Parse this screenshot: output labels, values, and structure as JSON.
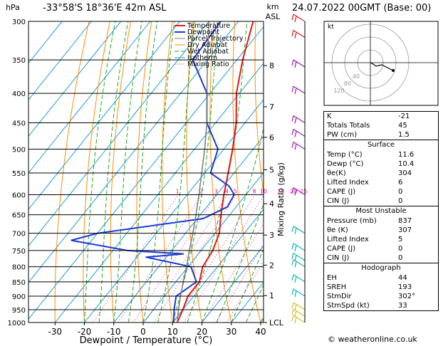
{
  "header": {
    "location": "-33°58'S  18°36'E  42m  ASL",
    "datetime": "24.07.2022  00GMT  (Base: 00)",
    "hpa_label": "hPa",
    "km_label": "km",
    "asl_label": "ASL"
  },
  "chart_data": {
    "type": "line",
    "xlabel": "Dewpoint / Temperature (°C)",
    "ylabel": "hPa",
    "right_axis_label": "Mixing Ratio (g/kg)",
    "xlim": [
      -40,
      40
    ],
    "ylim": [
      1000,
      300
    ],
    "x_ticks": [
      "-30",
      "-20",
      "-10",
      "0",
      "10",
      "20",
      "30",
      "40"
    ],
    "pressure_levels": [
      "300",
      "350",
      "400",
      "450",
      "500",
      "550",
      "600",
      "650",
      "700",
      "750",
      "800",
      "850",
      "900",
      "950",
      "1000"
    ],
    "km_ticks": [
      {
        "label": "8",
        "p": 358
      },
      {
        "label": "7",
        "p": 422
      },
      {
        "label": "6",
        "p": 477
      },
      {
        "label": "5",
        "p": 543
      },
      {
        "label": "4",
        "p": 622
      },
      {
        "label": "3",
        "p": 705
      },
      {
        "label": "2",
        "p": 795
      },
      {
        "label": "1",
        "p": 898
      },
      {
        "label": "LCL",
        "p": 1000
      }
    ],
    "mixing_ratio_labels": [
      "1",
      "2",
      "3",
      "4",
      "5",
      "8",
      "10",
      "15",
      "20",
      "25"
    ],
    "legend": [
      "Temperature",
      "Dewpoint",
      "Parcel Trajectory",
      "Dry Adiabat",
      "Wet Adiabat",
      "Isotherm",
      "Mixing Ratio"
    ],
    "colors": {
      "temperature": "#e11919",
      "dewpoint": "#1a3ad6",
      "parcel": "#808080",
      "dry_adiabat": "#ff8c00",
      "wet_adiabat": "#22aa22",
      "isotherm": "#1e9bd7",
      "mixing_ratio": "#e0109a"
    },
    "series": [
      {
        "name": "Temperature",
        "p": [
          1000,
          950,
          900,
          850,
          800,
          750,
          700,
          650,
          600,
          550,
          500,
          450,
          400,
          350,
          300
        ],
        "t": [
          11.6,
          10.0,
          8.0,
          8.0,
          5.0,
          4.0,
          1.5,
          -3.0,
          -7.5,
          -12.0,
          -17.0,
          -23.0,
          -31.0,
          -38.0,
          -45.0
        ]
      },
      {
        "name": "Dewpoint",
        "p": [
          1000,
          950,
          900,
          850,
          800,
          770,
          760,
          750,
          720,
          700,
          660,
          630,
          600,
          580,
          550,
          500,
          450,
          400,
          350,
          300
        ],
        "t": [
          10.4,
          7.0,
          4.0,
          7.0,
          1.0,
          -17.0,
          -5.0,
          -25.0,
          -47.0,
          -40.0,
          -8.0,
          -3.0,
          -4.0,
          -8.0,
          -18.0,
          -22.0,
          -33.0,
          -41.0,
          -55.0,
          -56.0
        ]
      },
      {
        "name": "Parcel Trajectory",
        "p": [
          1000,
          950,
          900,
          850,
          800,
          750,
          700,
          650,
          600,
          550,
          500,
          450,
          400,
          350,
          300
        ],
        "t": [
          11.6,
          8.5,
          5.5,
          2.5,
          -0.5,
          -4.0,
          -7.5,
          -11.5,
          -16.0,
          -21.0,
          -26.5,
          -33.0,
          -41.0,
          -50.0,
          -60.0
        ]
      }
    ]
  },
  "hodograph": {
    "label": "kt",
    "ring_labels": [
      "40",
      "80",
      "120"
    ]
  },
  "indices": [
    {
      "k": "K",
      "v": "-21"
    },
    {
      "k": "Totals Totals",
      "v": "45"
    },
    {
      "k": "PW (cm)",
      "v": "1.5"
    }
  ],
  "surface": {
    "title": "Surface",
    "rows": [
      {
        "k": "Temp (°C)",
        "v": "11.6"
      },
      {
        "k": "Dewp (°C)",
        "v": "10.4"
      },
      {
        "k": "θe(K)",
        "v": "304"
      },
      {
        "k": "Lifted Index",
        "v": "6"
      },
      {
        "k": "CAPE (J)",
        "v": "0"
      },
      {
        "k": "CIN (J)",
        "v": "0"
      }
    ]
  },
  "most_unstable": {
    "title": "Most Unstable",
    "rows": [
      {
        "k": "Pressure (mb)",
        "v": "837"
      },
      {
        "k": "θe (K)",
        "v": "307"
      },
      {
        "k": "Lifted Index",
        "v": "5"
      },
      {
        "k": "CAPE (J)",
        "v": "0"
      },
      {
        "k": "CIN (J)",
        "v": "0"
      }
    ]
  },
  "hodograph_table": {
    "title": "Hodograph",
    "rows": [
      {
        "k": "EH",
        "v": "44"
      },
      {
        "k": "SREH",
        "v": "193"
      },
      {
        "k": "StmDir",
        "v": "302°"
      },
      {
        "k": "StmSpd (kt)",
        "v": "33"
      }
    ]
  },
  "footer": "© weatheronline.co.uk"
}
